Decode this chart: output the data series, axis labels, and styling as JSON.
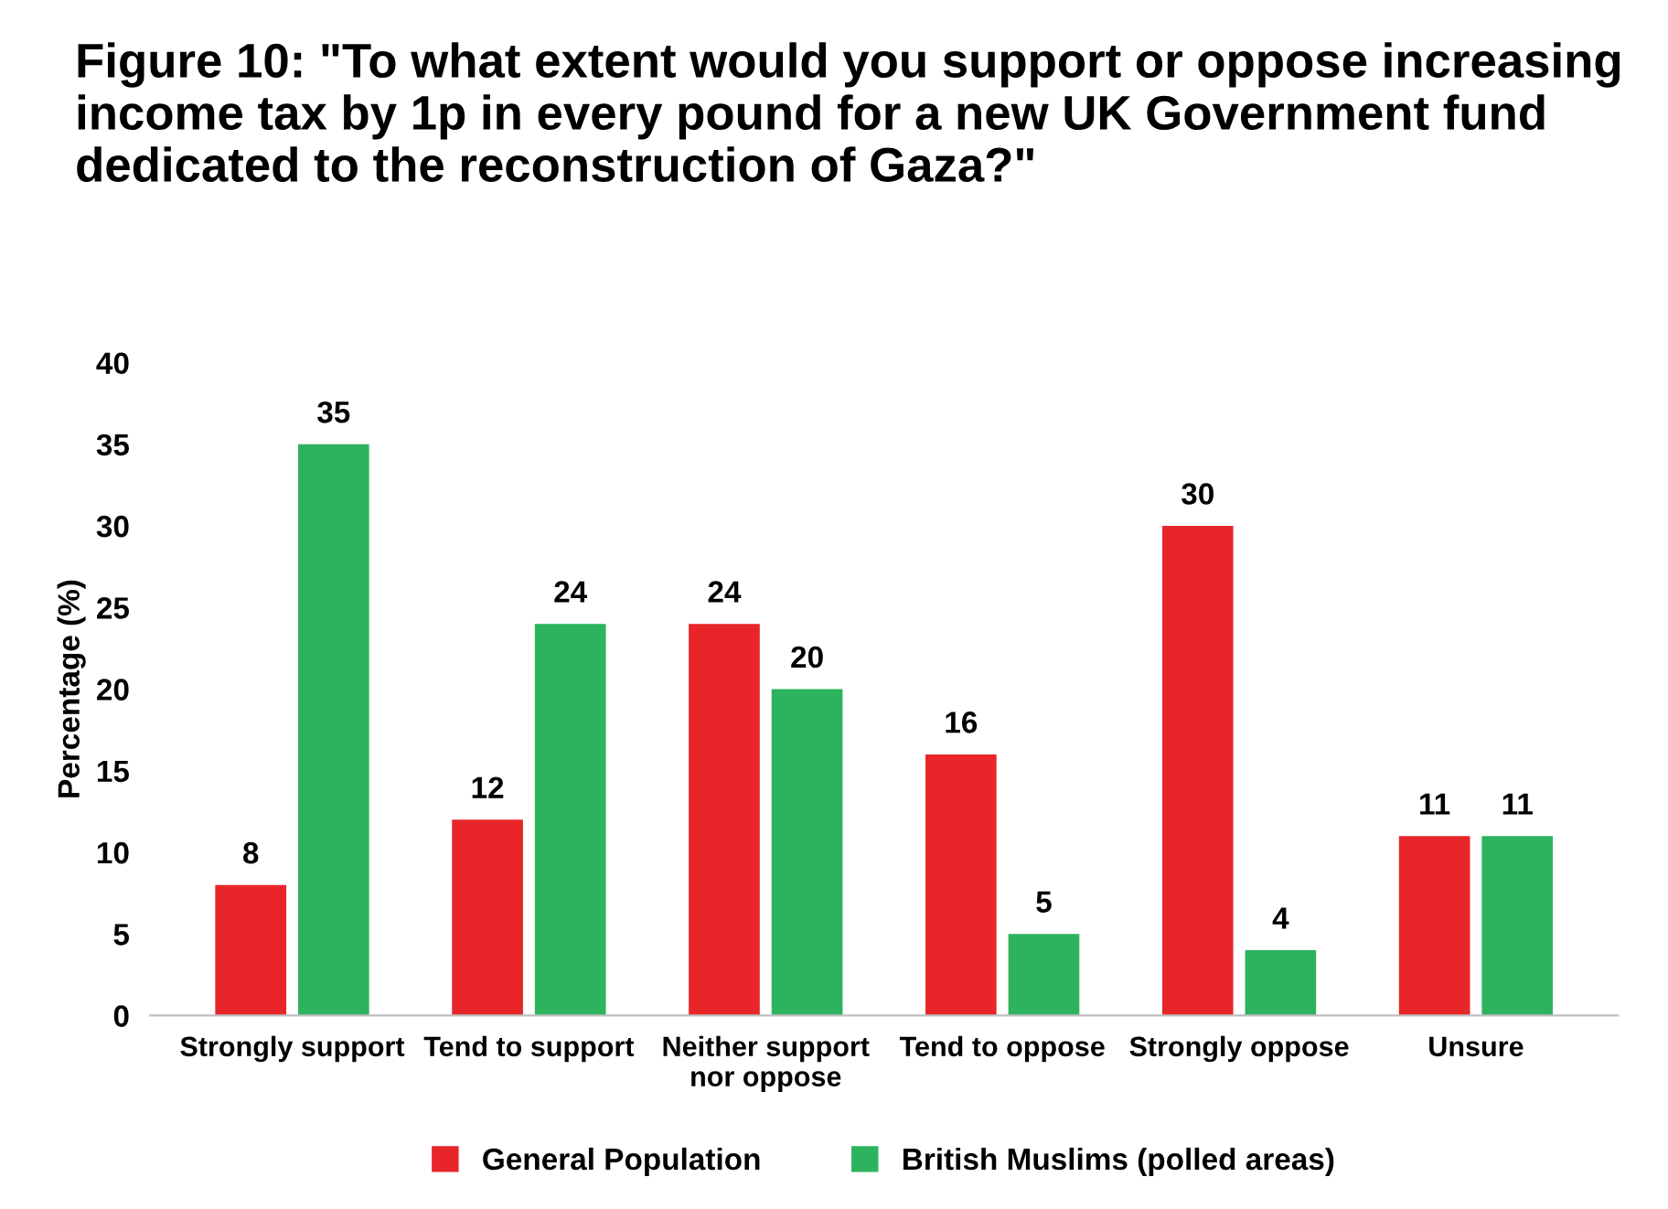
{
  "chart_data": {
    "type": "bar",
    "title": "Figure 10: \"To what extent would you support or oppose increasing income tax by 1p in every pound for a new UK Government fund dedicated to the reconstruction of Gaza?\"",
    "ylabel": "Percentage (%)",
    "categories": [
      "Strongly support",
      "Tend to support",
      "Neither support\nnor oppose",
      "Tend to oppose",
      "Strongly oppose",
      "Unsure"
    ],
    "series": [
      {
        "name": "General Population",
        "color": "#e8262a",
        "values": [
          8,
          12,
          24,
          16,
          30,
          11
        ]
      },
      {
        "name": "British Muslims (polled areas)",
        "color": "#2db35d",
        "values": [
          35,
          24,
          20,
          5,
          4,
          11
        ]
      }
    ],
    "ylim": [
      0,
      40
    ],
    "yticks": [
      0,
      5,
      10,
      15,
      20,
      25,
      30,
      35,
      40
    ],
    "data_labels": true,
    "grid": false,
    "legend": "bottom"
  }
}
